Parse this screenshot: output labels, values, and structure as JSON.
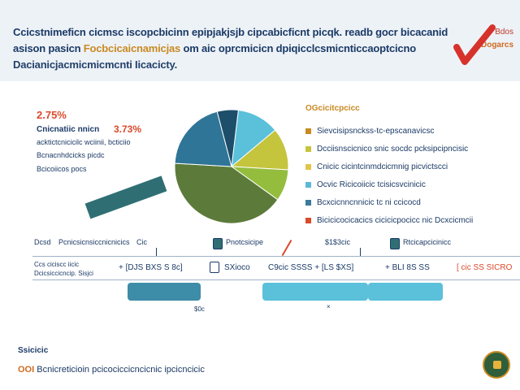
{
  "header": {
    "line1": "Ccicstnimeficn cicmsc iscopcbicinn epipjakjsjb cipcabicficnt picqk. readb gocr bicacanid",
    "line2_a": "asison pasicn ",
    "line2_b": "Focbcicaicnamicjas",
    "line2_c": " om aic oprcmicicn dpiqicclcsmicnticcaoptcicno",
    "line3": "Dacianicjacmicmicmcnti Iicacicty.",
    "badge_line1": "Bdos",
    "badge_line2": "Dogarcs",
    "accent_color": "#c98a22"
  },
  "stats": {
    "pct1": "2.75%",
    "label": "Cnicnatiic nnicn",
    "pct2": "3.73%",
    "sub1": "acktictcnicicilc wciinii, bcticiio",
    "sub2": "Bcnacnhdcicks picdc",
    "sub3": "Bcicoiicos pocs"
  },
  "legend": {
    "title": "OGcicitcpcicc",
    "items": [
      {
        "label": "Sievcisipsnckss-tc-epscanavicsc",
        "color": "#c98a22"
      },
      {
        "label": "Dcciisnscicnico snic socdc pcksipcipncisic",
        "color": "#c5c43d"
      },
      {
        "label": "Cnicic cicintcinmdcicmnig picvictscci",
        "color": "#e2c44a"
      },
      {
        "label": "Ocvic Ricicoiicic tcisicsvcinicic",
        "color": "#5bb9d8"
      },
      {
        "label": "Bcxcicnncnnicic tc ni ccicocd",
        "color": "#3a7a9b"
      },
      {
        "label": "Bicicicocicacics cicicicpocicc nic Dcxcicmcii",
        "color": "#d94a2c"
      }
    ]
  },
  "timeline": {
    "head1": "Dcsd",
    "head2": "Pcnicsicnsiccnicnicics",
    "head3": "Cic",
    "head4": "Pnotcsicipe",
    "head5": "$1$3cic",
    "head6": "Rtcicapcicinicc",
    "left1": "Ccs  ciciscc iicic",
    "left2": "Dcicsiccicncip. Sisjci",
    "cells": [
      {
        "text": "+  [DJS BXS S 8c]",
        "red": false
      },
      {
        "text": "SXioco",
        "red": false
      },
      {
        "text": "C9cic SSSS  +  [LS $XS]",
        "red": false
      },
      {
        "text": "+  BLI 8S SS",
        "red": false
      },
      {
        "text": "[ cic SS SICRO",
        "red": true
      }
    ],
    "axis1": "$0c",
    "axis2": "×"
  },
  "footer": {
    "label": "Ssicicic",
    "sub_a": "OOI",
    "sub_b": " Bcnicreticioin pcicociccicncicnic ipcicncicic"
  },
  "chart_data": {
    "type": "pie",
    "title": "",
    "slices": [
      {
        "label": "Cnicic cicintcinmdcicmnig picvictscci",
        "value": 12,
        "color": "#5bc0da"
      },
      {
        "label": "Sievcisipsnckss-tc-epscanavicsc",
        "value": 12,
        "color": "#c5c43d"
      },
      {
        "label": "Dcciisnscicnico snic socdc pcksipcipncisic",
        "value": 9,
        "color": "#94bd3e"
      },
      {
        "label": "Ocvic Ricicoiicic tcisicsvcinicic",
        "value": 41,
        "color": "#5c7b3a"
      },
      {
        "label": "Bcxcicnncnnicic tc ni ccicocd",
        "value": 20,
        "color": "#2e7597"
      },
      {
        "label": "Bicicicocicacics cicicicpocicc nic Dcxcicmcii",
        "value": 6,
        "color": "#1d4e6a"
      }
    ]
  }
}
